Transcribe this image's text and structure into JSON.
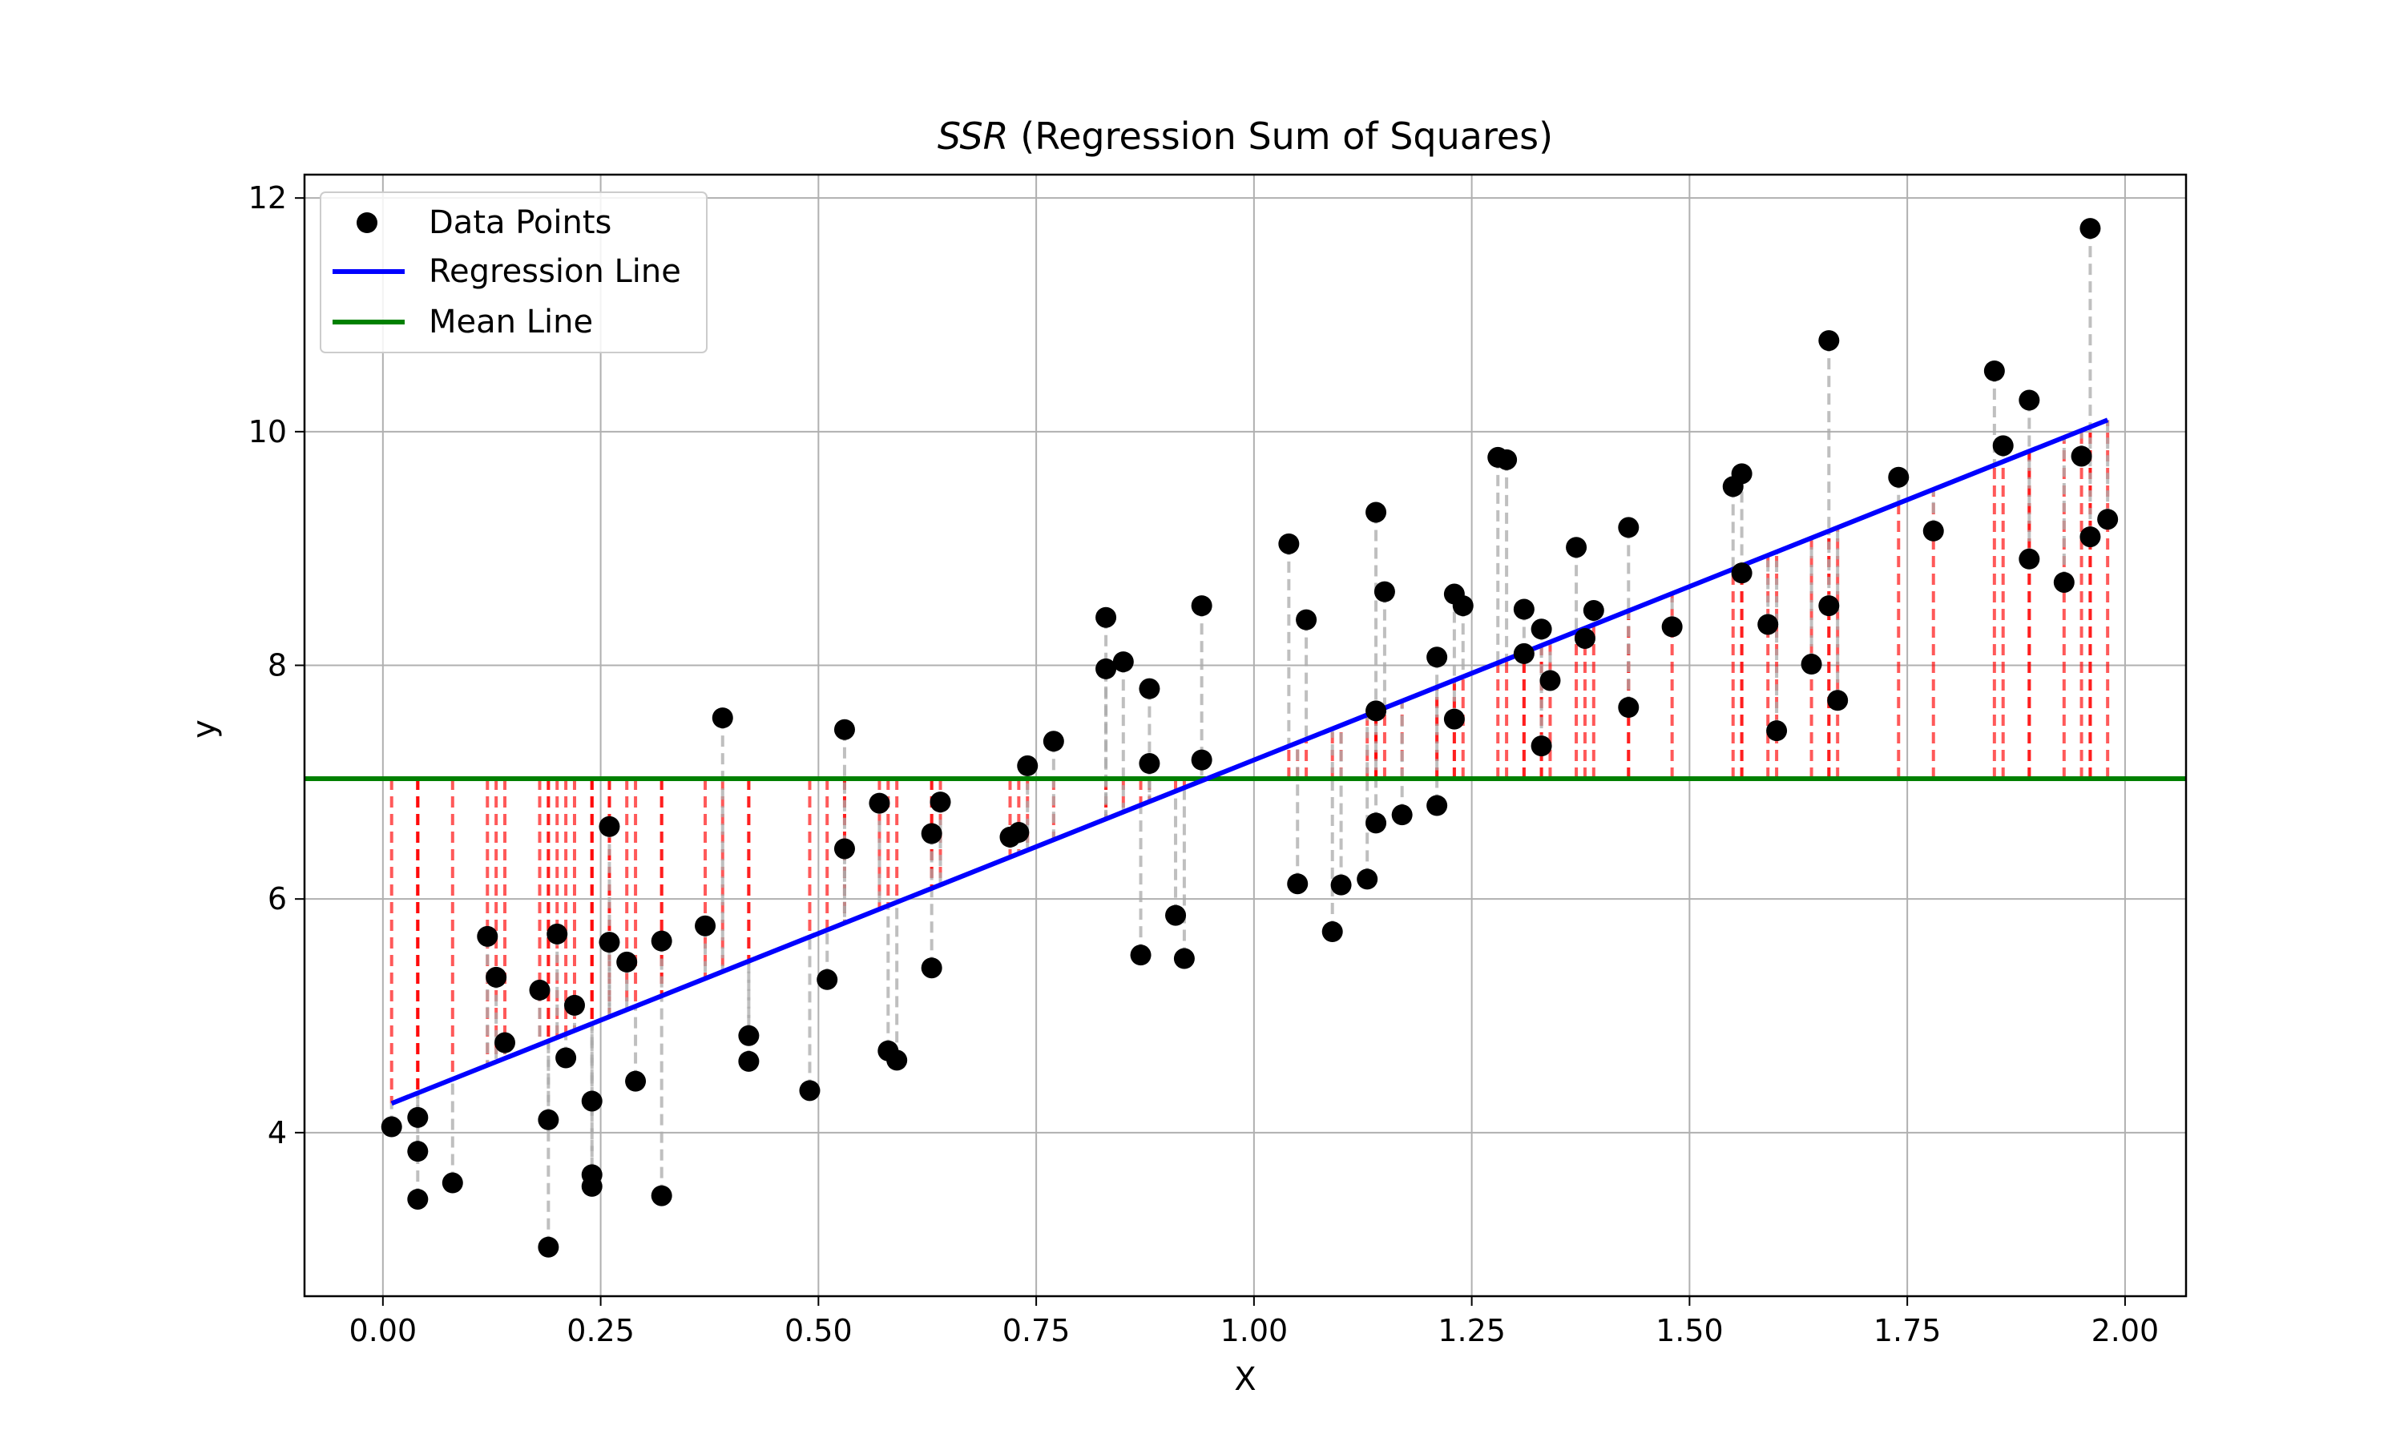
{
  "chart_data": {
    "type": "scatter",
    "title_italic": "SSR",
    "title_rest": " (Regression Sum of Squares)",
    "xlabel": "X",
    "ylabel": "y",
    "xlim": [
      -0.09,
      2.07
    ],
    "ylim": [
      2.6,
      12.2
    ],
    "xticks": [
      0.0,
      0.25,
      0.5,
      0.75,
      1.0,
      1.25,
      1.5,
      1.75,
      2.0
    ],
    "xtick_labels": [
      "0.00",
      "0.25",
      "0.50",
      "0.75",
      "1.00",
      "1.25",
      "1.50",
      "1.75",
      "2.00"
    ],
    "yticks": [
      4,
      6,
      8,
      10,
      12
    ],
    "ytick_labels": [
      "4",
      "6",
      "8",
      "10",
      "12"
    ],
    "grid": true,
    "legend_position": "upper-left",
    "series": [
      {
        "name": "Data Points",
        "kind": "scatter",
        "color": "#000000"
      },
      {
        "name": "Regression Line",
        "kind": "line",
        "color": "#0000ff",
        "x": [
          0.01,
          1.98
        ],
        "y": [
          4.25,
          10.1
        ]
      },
      {
        "name": "Mean Line",
        "kind": "hline",
        "color": "#008000",
        "y": 7.03
      }
    ],
    "residual_color": "#aaaaaa",
    "explained_color": "#ff0000",
    "points": [
      [
        0.01,
        4.05
      ],
      [
        0.04,
        3.84
      ],
      [
        0.04,
        4.13
      ],
      [
        0.04,
        3.43
      ],
      [
        0.08,
        3.57
      ],
      [
        0.12,
        5.68
      ],
      [
        0.13,
        5.33
      ],
      [
        0.14,
        4.77
      ],
      [
        0.18,
        5.22
      ],
      [
        0.19,
        3.02
      ],
      [
        0.19,
        4.11
      ],
      [
        0.2,
        5.7
      ],
      [
        0.21,
        4.64
      ],
      [
        0.22,
        5.09
      ],
      [
        0.24,
        4.27
      ],
      [
        0.24,
        3.54
      ],
      [
        0.24,
        3.64
      ],
      [
        0.26,
        6.62
      ],
      [
        0.26,
        5.63
      ],
      [
        0.28,
        5.46
      ],
      [
        0.29,
        4.44
      ],
      [
        0.32,
        3.46
      ],
      [
        0.32,
        5.64
      ],
      [
        0.37,
        5.77
      ],
      [
        0.39,
        7.55
      ],
      [
        0.42,
        4.61
      ],
      [
        0.42,
        4.83
      ],
      [
        0.49,
        4.36
      ],
      [
        0.51,
        5.31
      ],
      [
        0.53,
        6.43
      ],
      [
        0.53,
        7.45
      ],
      [
        0.57,
        6.82
      ],
      [
        0.58,
        4.7
      ],
      [
        0.59,
        4.62
      ],
      [
        0.63,
        6.56
      ],
      [
        0.63,
        5.41
      ],
      [
        0.64,
        6.83
      ],
      [
        0.72,
        6.53
      ],
      [
        0.73,
        6.57
      ],
      [
        0.74,
        7.14
      ],
      [
        0.77,
        7.35
      ],
      [
        0.83,
        7.97
      ],
      [
        0.83,
        8.41
      ],
      [
        0.85,
        8.03
      ],
      [
        0.87,
        5.52
      ],
      [
        0.88,
        7.8
      ],
      [
        0.88,
        7.16
      ],
      [
        0.91,
        5.86
      ],
      [
        0.92,
        5.49
      ],
      [
        0.94,
        7.19
      ],
      [
        0.94,
        8.51
      ],
      [
        1.04,
        9.04
      ],
      [
        1.05,
        6.13
      ],
      [
        1.06,
        8.39
      ],
      [
        1.09,
        5.72
      ],
      [
        1.1,
        6.12
      ],
      [
        1.13,
        6.17
      ],
      [
        1.14,
        7.61
      ],
      [
        1.14,
        6.65
      ],
      [
        1.14,
        9.31
      ],
      [
        1.15,
        8.63
      ],
      [
        1.17,
        6.72
      ],
      [
        1.21,
        8.07
      ],
      [
        1.21,
        6.8
      ],
      [
        1.23,
        8.61
      ],
      [
        1.23,
        7.54
      ],
      [
        1.24,
        8.51
      ],
      [
        1.28,
        9.78
      ],
      [
        1.29,
        9.76
      ],
      [
        1.31,
        8.48
      ],
      [
        1.31,
        8.1
      ],
      [
        1.33,
        7.31
      ],
      [
        1.33,
        8.31
      ],
      [
        1.34,
        7.87
      ],
      [
        1.37,
        9.01
      ],
      [
        1.38,
        8.23
      ],
      [
        1.39,
        8.47
      ],
      [
        1.43,
        7.64
      ],
      [
        1.43,
        9.18
      ],
      [
        1.48,
        8.33
      ],
      [
        1.55,
        9.53
      ],
      [
        1.56,
        8.79
      ],
      [
        1.56,
        9.64
      ],
      [
        1.59,
        8.35
      ],
      [
        1.6,
        7.44
      ],
      [
        1.64,
        8.01
      ],
      [
        1.66,
        8.51
      ],
      [
        1.66,
        10.78
      ],
      [
        1.67,
        7.7
      ],
      [
        1.74,
        9.61
      ],
      [
        1.78,
        9.15
      ],
      [
        1.85,
        10.52
      ],
      [
        1.86,
        9.88
      ],
      [
        1.89,
        8.91
      ],
      [
        1.89,
        10.27
      ],
      [
        1.93,
        8.71
      ],
      [
        1.95,
        9.79
      ],
      [
        1.96,
        9.1
      ],
      [
        1.96,
        11.74
      ],
      [
        1.98,
        9.25
      ]
    ]
  }
}
